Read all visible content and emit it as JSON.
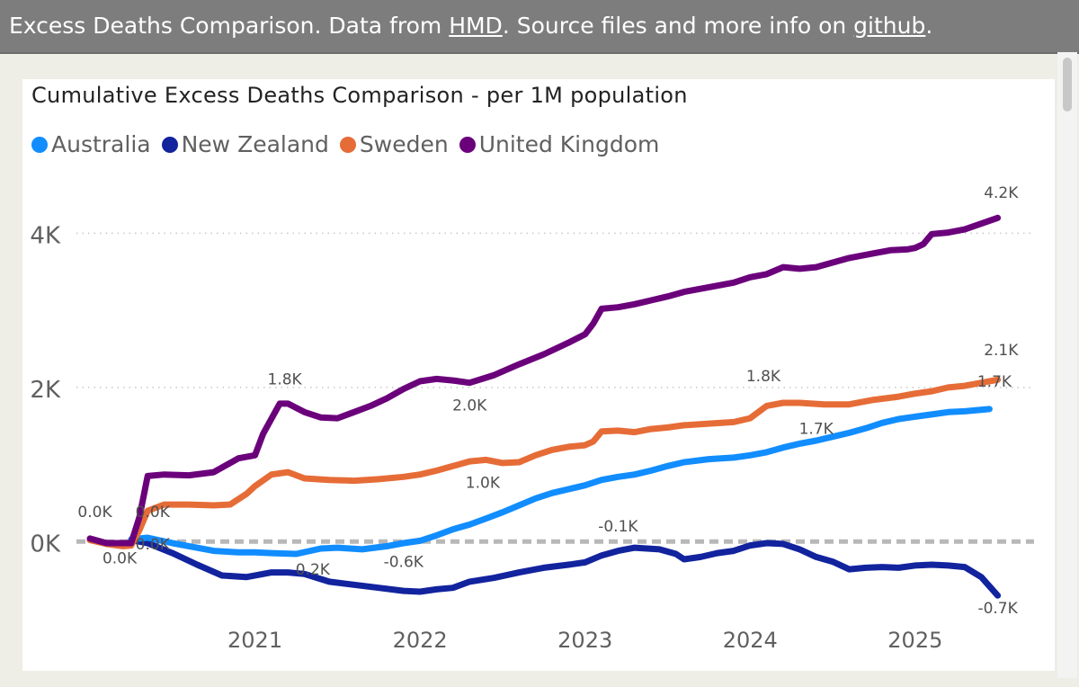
{
  "header": {
    "prefix": "Excess Deaths Comparison. Data from ",
    "link_hmd": "HMD",
    "middle": ". Source files and more info on ",
    "link_github": "github",
    "suffix": "."
  },
  "chart_data": {
    "type": "line",
    "title": "Cumulative Excess Deaths Comparison - per 1M population",
    "xlabel": "",
    "ylabel": "",
    "xlim": [
      2020.0,
      2025.72
    ],
    "ylim": [
      -1000,
      4600
    ],
    "y_ticks": [
      0,
      2000,
      4000
    ],
    "y_tick_labels": [
      "0K",
      "2K",
      "4K"
    ],
    "x_ticks": [
      2021,
      2022,
      2023,
      2024,
      2025
    ],
    "x_tick_labels": [
      "2021",
      "2022",
      "2023",
      "2024",
      "2025"
    ],
    "legend_position": "top-left",
    "reference_line": 0,
    "series": [
      {
        "name": "Australia",
        "color": "#118dff",
        "x": [
          2020.25,
          2020.35,
          2020.5,
          2020.6,
          2020.75,
          2020.9,
          2021.0,
          2021.1,
          2021.25,
          2021.4,
          2021.5,
          2021.65,
          2021.8,
          2021.9,
          2022.0,
          2022.1,
          2022.2,
          2022.3,
          2022.4,
          2022.5,
          2022.6,
          2022.7,
          2022.8,
          2022.9,
          2023.0,
          2023.1,
          2023.2,
          2023.3,
          2023.4,
          2023.5,
          2023.6,
          2023.75,
          2023.9,
          2024.0,
          2024.1,
          2024.2,
          2024.3,
          2024.4,
          2024.5,
          2024.6,
          2024.7,
          2024.8,
          2024.9,
          2025.0,
          2025.1,
          2025.2,
          2025.3,
          2025.45
        ],
        "y": [
          30,
          50,
          -20,
          -60,
          -120,
          -140,
          -140,
          -150,
          -160,
          -90,
          -80,
          -100,
          -60,
          -20,
          10,
          80,
          160,
          220,
          300,
          380,
          470,
          560,
          630,
          680,
          730,
          800,
          840,
          870,
          920,
          980,
          1030,
          1070,
          1090,
          1120,
          1160,
          1220,
          1270,
          1310,
          1360,
          1410,
          1470,
          1540,
          1590,
          1620,
          1650,
          1680,
          1690,
          1720
        ]
      },
      {
        "name": "New Zealand",
        "color": "#12239e",
        "x": [
          2020.25,
          2020.35,
          2020.5,
          2020.65,
          2020.8,
          2020.95,
          2021.1,
          2021.2,
          2021.3,
          2021.45,
          2021.6,
          2021.75,
          2021.9,
          2022.0,
          2022.1,
          2022.2,
          2022.3,
          2022.45,
          2022.6,
          2022.75,
          2022.9,
          2023.0,
          2023.1,
          2023.2,
          2023.3,
          2023.45,
          2023.55,
          2023.6,
          2023.7,
          2023.8,
          2023.9,
          2024.0,
          2024.1,
          2024.2,
          2024.3,
          2024.4,
          2024.5,
          2024.6,
          2024.7,
          2024.8,
          2024.9,
          2025.0,
          2025.1,
          2025.2,
          2025.3,
          2025.4,
          2025.5
        ],
        "y": [
          20,
          -20,
          -150,
          -300,
          -440,
          -460,
          -400,
          -400,
          -420,
          -520,
          -560,
          -600,
          -640,
          -650,
          -620,
          -600,
          -520,
          -470,
          -400,
          -340,
          -300,
          -270,
          -180,
          -120,
          -80,
          -100,
          -160,
          -230,
          -200,
          -150,
          -120,
          -50,
          -20,
          -30,
          -100,
          -200,
          -260,
          -360,
          -340,
          -330,
          -340,
          -310,
          -300,
          -310,
          -330,
          -460,
          -700
        ]
      },
      {
        "name": "Sweden",
        "color": "#e66c37",
        "x": [
          2020.0,
          2020.1,
          2020.2,
          2020.25,
          2020.3,
          2020.35,
          2020.45,
          2020.6,
          2020.75,
          2020.85,
          2020.95,
          2021.0,
          2021.1,
          2021.2,
          2021.3,
          2021.45,
          2021.6,
          2021.75,
          2021.9,
          2022.0,
          2022.1,
          2022.2,
          2022.3,
          2022.4,
          2022.5,
          2022.6,
          2022.7,
          2022.8,
          2022.9,
          2023.0,
          2023.05,
          2023.1,
          2023.2,
          2023.3,
          2023.4,
          2023.5,
          2023.6,
          2023.75,
          2023.9,
          2024.0,
          2024.1,
          2024.2,
          2024.3,
          2024.45,
          2024.6,
          2024.75,
          2024.9,
          2025.0,
          2025.1,
          2025.2,
          2025.3,
          2025.5
        ],
        "y": [
          20,
          -30,
          -60,
          -50,
          150,
          400,
          480,
          480,
          470,
          480,
          620,
          720,
          870,
          900,
          820,
          800,
          790,
          810,
          840,
          870,
          920,
          980,
          1040,
          1060,
          1020,
          1030,
          1120,
          1190,
          1230,
          1250,
          1300,
          1430,
          1440,
          1420,
          1460,
          1480,
          1510,
          1530,
          1550,
          1600,
          1760,
          1800,
          1800,
          1780,
          1780,
          1840,
          1880,
          1920,
          1950,
          2000,
          2020,
          2100
        ]
      },
      {
        "name": "United Kingdom",
        "color": "#6b007b",
        "x": [
          2020.0,
          2020.1,
          2020.25,
          2020.3,
          2020.35,
          2020.45,
          2020.6,
          2020.75,
          2020.9,
          2021.0,
          2021.05,
          2021.15,
          2021.2,
          2021.3,
          2021.4,
          2021.5,
          2021.6,
          2021.7,
          2021.8,
          2021.9,
          2022.0,
          2022.1,
          2022.2,
          2022.3,
          2022.45,
          2022.6,
          2022.75,
          2022.9,
          2023.0,
          2023.05,
          2023.1,
          2023.2,
          2023.3,
          2023.4,
          2023.5,
          2023.6,
          2023.75,
          2023.9,
          2024.0,
          2024.1,
          2024.2,
          2024.3,
          2024.4,
          2024.5,
          2024.6,
          2024.75,
          2024.85,
          2024.95,
          2025.0,
          2025.05,
          2025.1,
          2025.2,
          2025.3,
          2025.5
        ],
        "y": [
          40,
          -20,
          -20,
          320,
          850,
          870,
          860,
          900,
          1080,
          1120,
          1400,
          1790,
          1790,
          1680,
          1610,
          1600,
          1680,
          1760,
          1860,
          1980,
          2080,
          2110,
          2090,
          2060,
          2160,
          2300,
          2430,
          2580,
          2690,
          2830,
          3020,
          3040,
          3080,
          3130,
          3180,
          3240,
          3300,
          3360,
          3430,
          3470,
          3560,
          3540,
          3560,
          3620,
          3680,
          3740,
          3780,
          3790,
          3810,
          3860,
          3990,
          4010,
          4050,
          4200
        ]
      }
    ],
    "annotations": [
      {
        "text": "0.0K",
        "x": 2020.03,
        "y": 320
      },
      {
        "text": "0.0K",
        "x": 2020.38,
        "y": 320
      },
      {
        "text": "0.0K",
        "x": 2020.18,
        "y": -280
      },
      {
        "text": "0.0K",
        "x": 2020.38,
        "y": -100
      },
      {
        "text": "1.8K",
        "x": 2021.18,
        "y": 2040
      },
      {
        "text": "2.0K",
        "x": 2022.3,
        "y": 1700
      },
      {
        "text": "1.0K",
        "x": 2022.38,
        "y": 700
      },
      {
        "text": "-0.6K",
        "x": 2021.9,
        "y": -330
      },
      {
        "text": "0.2K",
        "x": 2021.35,
        "y": -430
      },
      {
        "text": "-0.1K",
        "x": 2023.2,
        "y": 130
      },
      {
        "text": "1.8K",
        "x": 2024.08,
        "y": 2080
      },
      {
        "text": "1.7K",
        "x": 2024.4,
        "y": 1400
      },
      {
        "text": "4.2K",
        "x": 2025.52,
        "y": 4460
      },
      {
        "text": "2.1K",
        "x": 2025.52,
        "y": 2420
      },
      {
        "text": "1.7K",
        "x": 2025.48,
        "y": 2010
      },
      {
        "text": "-0.7K",
        "x": 2025.5,
        "y": -930
      }
    ]
  }
}
